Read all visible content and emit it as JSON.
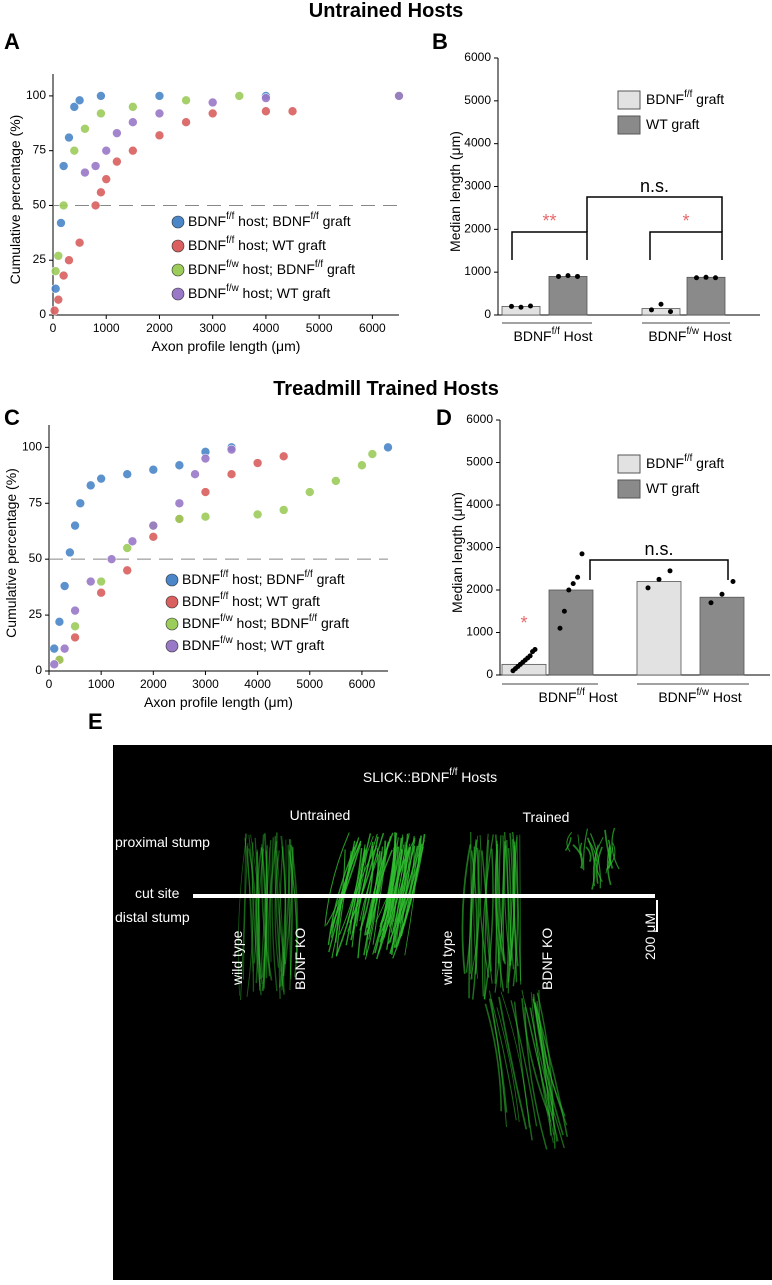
{
  "titles": [
    "Untrained Hosts",
    "Treadmill Trained Hosts"
  ],
  "panel_labels": [
    "A",
    "B",
    "C",
    "D",
    "E"
  ],
  "chart_data": [
    {
      "type": "scatter",
      "xlabel": "Axon profile length (μm)",
      "ylabel": "Cumulative percentage (%)",
      "xlim": [
        0,
        6500
      ],
      "xticks": [
        0,
        1000,
        2000,
        3000,
        4000,
        5000,
        6000
      ],
      "ylim": [
        0,
        110
      ],
      "yticks": [
        0,
        25,
        50,
        75,
        100
      ],
      "hline": 50,
      "series": [
        {
          "name": "BDNFf/f host; BDNFf/f graft",
          "color": "#4a86c8",
          "x": [
            50,
            150,
            200,
            300,
            400,
            500,
            900,
            2000,
            4000,
            6500
          ],
          "values": [
            12,
            42,
            68,
            81,
            95,
            98,
            100,
            100,
            100,
            100
          ]
        },
        {
          "name": "BDNFf/f host; WT graft",
          "color": "#d9605f",
          "x": [
            30,
            100,
            200,
            300,
            500,
            800,
            900,
            1000,
            1200,
            1500,
            2000,
            2500,
            3000,
            4000,
            4500
          ],
          "values": [
            2,
            7,
            18,
            25,
            33,
            50,
            56,
            62,
            70,
            75,
            82,
            88,
            92,
            93,
            93
          ]
        },
        {
          "name": "BDNFf/w host; BDNFf/f graft",
          "color": "#9ccc5a",
          "x": [
            50,
            100,
            200,
            400,
            600,
            900,
            1500,
            2500,
            3500,
            6500
          ],
          "values": [
            20,
            27,
            50,
            75,
            85,
            92,
            95,
            98,
            100,
            100
          ]
        },
        {
          "name": "BDNFf/w host; WT graft",
          "color": "#9a78c8",
          "x": [
            600,
            800,
            1000,
            1200,
            1500,
            2000,
            3000,
            4000,
            6500
          ],
          "values": [
            65,
            68,
            75,
            83,
            88,
            92,
            97,
            99,
            100
          ]
        }
      ]
    },
    {
      "type": "bar",
      "ylabel": "Median length (μm)",
      "categories": [
        "BDNFf/f Host",
        "BDNFf/w Host"
      ],
      "ylim": [
        0,
        6000
      ],
      "yticks": [
        0,
        1000,
        2000,
        3000,
        4000,
        5000,
        6000
      ],
      "series": [
        {
          "name": "BDNFf/f graft",
          "color": "#e2e2e2",
          "values": [
            200,
            150
          ],
          "points": [
            [
              200,
              180,
              210
            ],
            [
              120,
              250,
              80
            ]
          ]
        },
        {
          "name": "WT graft",
          "color": "#8a8a8a",
          "values": [
            900,
            880
          ],
          "points": [
            [
              900,
              920,
              900
            ],
            [
              870,
              880,
              870
            ]
          ]
        }
      ],
      "annotations": [
        {
          "text": "**",
          "color": "#e8696b"
        },
        {
          "text": "*",
          "color": "#e8696b"
        },
        {
          "text": "n.s.",
          "color": "#000000"
        }
      ]
    },
    {
      "type": "scatter",
      "xlabel": "Axon profile length (μm)",
      "ylabel": "Cumulative percentage (%)",
      "xlim": [
        0,
        6500
      ],
      "xticks": [
        0,
        1000,
        2000,
        3000,
        4000,
        5000,
        6000
      ],
      "ylim": [
        0,
        110
      ],
      "yticks": [
        0,
        25,
        50,
        75,
        100
      ],
      "hline": 50,
      "series": [
        {
          "name": "BDNFf/f host; BDNFf/f graft",
          "color": "#4a86c8",
          "x": [
            100,
            200,
            300,
            400,
            500,
            600,
            800,
            1000,
            1500,
            2000,
            2500,
            3000,
            3500,
            6500
          ],
          "values": [
            10,
            22,
            38,
            53,
            65,
            75,
            83,
            86,
            88,
            90,
            92,
            98,
            100,
            100
          ]
        },
        {
          "name": "BDNFf/f host; WT graft",
          "color": "#d9605f",
          "x": [
            200,
            500,
            1000,
            1500,
            2000,
            2500,
            3000,
            3500,
            4000,
            4500
          ],
          "values": [
            5,
            15,
            35,
            45,
            60,
            68,
            80,
            88,
            93,
            96
          ]
        },
        {
          "name": "BDNFf/w host; BDNFf/f graft",
          "color": "#9ccc5a",
          "x": [
            200,
            500,
            1000,
            1500,
            2000,
            2500,
            3000,
            4000,
            4500,
            5000,
            5500,
            6000,
            6200
          ],
          "values": [
            5,
            20,
            40,
            55,
            65,
            68,
            69,
            70,
            72,
            80,
            85,
            92,
            97
          ]
        },
        {
          "name": "BDNFf/w host; WT graft",
          "color": "#9a78c8",
          "x": [
            100,
            300,
            500,
            800,
            1200,
            1600,
            2000,
            2500,
            2800,
            3000,
            3500
          ],
          "values": [
            3,
            10,
            27,
            40,
            50,
            58,
            65,
            75,
            88,
            95,
            99
          ]
        }
      ]
    },
    {
      "type": "bar",
      "ylabel": "Median length (μm)",
      "categories": [
        "BDNFf/f Host",
        "BDNFf/w Host"
      ],
      "ylim": [
        0,
        6000
      ],
      "yticks": [
        0,
        1000,
        2000,
        3000,
        4000,
        5000,
        6000
      ],
      "series": [
        {
          "name": "BDNFf/f graft",
          "color": "#e2e2e2",
          "values": [
            250,
            2200
          ],
          "points": [
            [
              100,
              150,
              200,
              250,
              300,
              350,
              400,
              450,
              550,
              600
            ],
            [
              2050,
              2250,
              2450
            ]
          ]
        },
        {
          "name": "WT graft",
          "color": "#8a8a8a",
          "values": [
            2000,
            1830
          ],
          "points": [
            [
              1100,
              1500,
              2000,
              2150,
              2300,
              2850
            ],
            [
              1700,
              1900,
              2200
            ]
          ]
        }
      ],
      "annotations": [
        {
          "text": "*",
          "color": "#e8696b"
        },
        {
          "text": "n.s.",
          "color": "#000000"
        }
      ]
    }
  ],
  "panel_e": {
    "title": "SLICK::BDNFf/f Hosts",
    "columns": [
      "Untrained",
      "Trained"
    ],
    "rows": [
      "proximal stump",
      "cut site",
      "distal stump"
    ],
    "lanes": [
      "wild type",
      "BDNF KO",
      "wild type",
      "BDNF KO"
    ],
    "scale": "200 μM"
  }
}
